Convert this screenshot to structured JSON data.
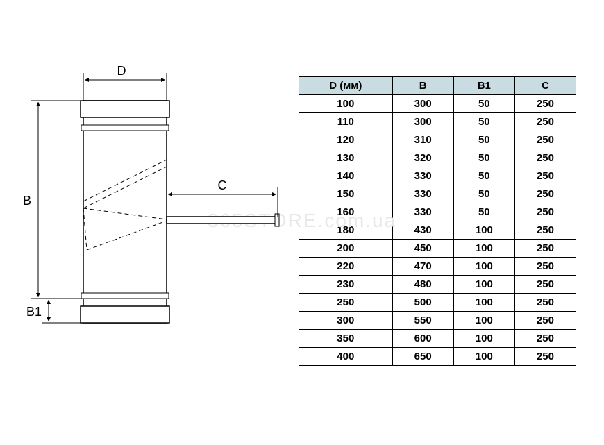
{
  "watermark": "365STORE.com.ua",
  "diagram": {
    "labels": {
      "D": "D",
      "B": "B",
      "B1": "B1",
      "C": "C"
    },
    "stroke_color": "#000000",
    "fill_color": "#ffffff",
    "hatch_opacity": 0.25,
    "dash_pattern": "6,4",
    "dim_line_width": 1,
    "part_line_width": 1.5,
    "arrow_size": 6,
    "label_fontsize": 18
  },
  "table": {
    "header_bg": "#c8dce1",
    "border_color": "#000000",
    "font_size": 15,
    "columns": [
      "D (мм)",
      "B",
      "B1",
      "C"
    ],
    "rows": [
      [
        100,
        300,
        50,
        250
      ],
      [
        110,
        300,
        50,
        250
      ],
      [
        120,
        310,
        50,
        250
      ],
      [
        130,
        320,
        50,
        250
      ],
      [
        140,
        330,
        50,
        250
      ],
      [
        150,
        330,
        50,
        250
      ],
      [
        160,
        330,
        50,
        250
      ],
      [
        180,
        430,
        100,
        250
      ],
      [
        200,
        450,
        100,
        250
      ],
      [
        220,
        470,
        100,
        250
      ],
      [
        230,
        480,
        100,
        250
      ],
      [
        250,
        500,
        100,
        250
      ],
      [
        300,
        550,
        100,
        250
      ],
      [
        350,
        600,
        100,
        250
      ],
      [
        400,
        650,
        100,
        250
      ]
    ]
  }
}
